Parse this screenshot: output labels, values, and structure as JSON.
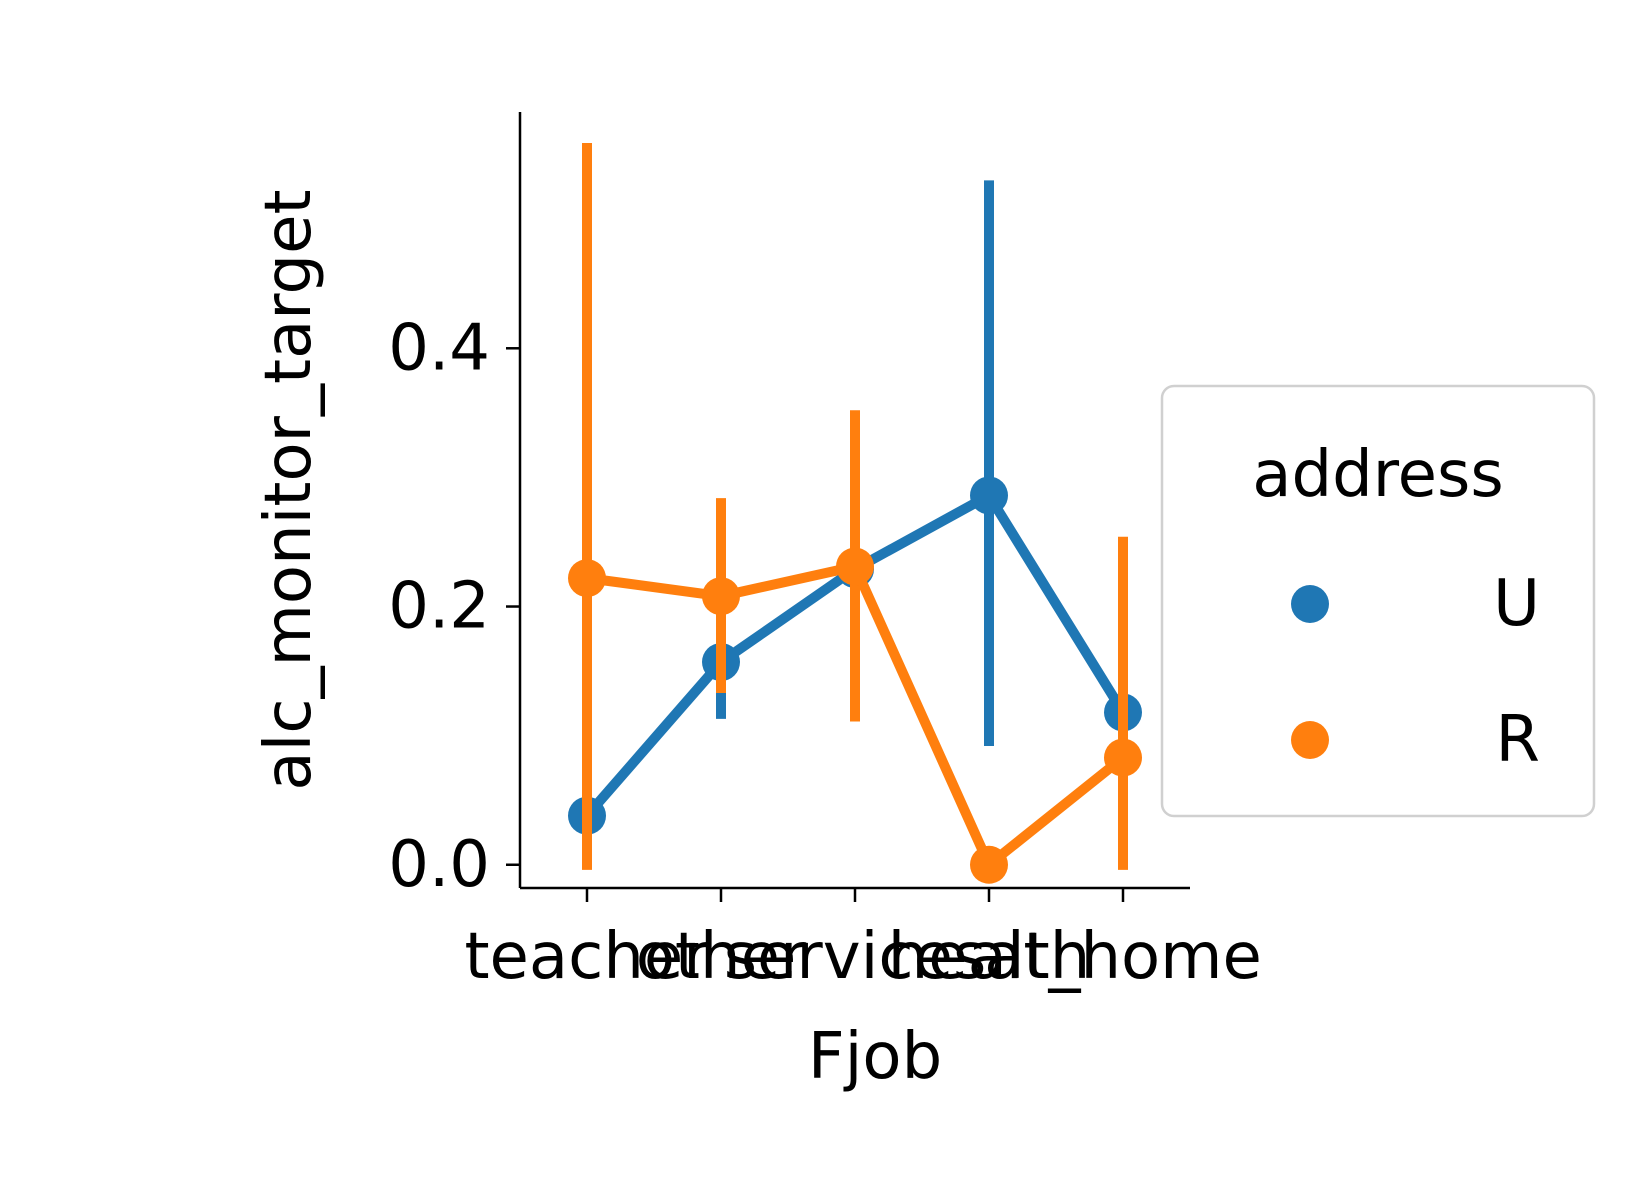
{
  "chart_data": {
    "type": "line",
    "xlabel": "Fjob",
    "ylabel": "alc_monitor_target",
    "categories": [
      "teacher",
      "other",
      "services",
      "health",
      "at_home"
    ],
    "ylim": [
      -0.018,
      0.583
    ],
    "yticks": [
      "0.0",
      "0.2",
      "0.4"
    ],
    "ytick_values": [
      0.0,
      0.2,
      0.4
    ],
    "legend": {
      "title": "address",
      "position": "right"
    },
    "series": [
      {
        "name": "U",
        "color": "#1f77b4",
        "values": [
          0.038,
          0.157,
          0.229,
          0.286,
          0.118
        ],
        "ci_low": [
          0.0,
          0.113,
          0.118,
          0.092,
          0.0
        ],
        "ci_high": [
          0.119,
          0.21,
          0.346,
          0.53,
          0.226
        ]
      },
      {
        "name": "R",
        "color": "#ff7f0e",
        "values": [
          0.222,
          0.208,
          0.231,
          0.0,
          0.083
        ],
        "ci_low": [
          -0.004,
          0.133,
          0.111,
          0.0,
          -0.004
        ],
        "ci_high": [
          0.559,
          0.284,
          0.352,
          0.0,
          0.254
        ]
      }
    ]
  }
}
